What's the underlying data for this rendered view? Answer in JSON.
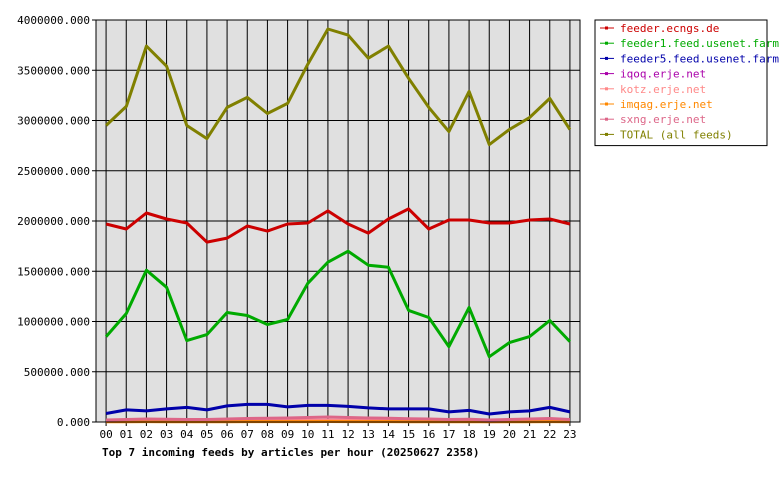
{
  "chart_data": {
    "type": "line",
    "title": "Top 7 incoming feeds by articles per hour (20250627 2358)",
    "categories": [
      "00",
      "01",
      "02",
      "03",
      "04",
      "05",
      "06",
      "07",
      "08",
      "09",
      "10",
      "11",
      "12",
      "13",
      "14",
      "15",
      "16",
      "17",
      "18",
      "19",
      "20",
      "21",
      "22",
      "23"
    ],
    "ylim": [
      0,
      4000000
    ],
    "yticks": [
      "0.000",
      "500000.000",
      "1000000.000",
      "1500000.000",
      "2000000.000",
      "2500000.000",
      "3000000.000",
      "3500000.000",
      "4000000.000"
    ],
    "grid": true,
    "legend_position": "right",
    "series": [
      {
        "name": "feeder.ecngs.de",
        "color": "#cc0000",
        "values": [
          1970000,
          1920000,
          2080000,
          2020000,
          1980000,
          1790000,
          1830000,
          1950000,
          1900000,
          1970000,
          1980000,
          2100000,
          1970000,
          1880000,
          2020000,
          2120000,
          1920000,
          2010000,
          2010000,
          1980000,
          1980000,
          2010000,
          2020000,
          1970000
        ]
      },
      {
        "name": "feeder1.feed.usenet.farm",
        "color": "#00aa00",
        "values": [
          850000,
          1080000,
          1510000,
          1340000,
          810000,
          870000,
          1090000,
          1060000,
          970000,
          1020000,
          1380000,
          1590000,
          1700000,
          1560000,
          1540000,
          1110000,
          1040000,
          750000,
          1140000,
          650000,
          790000,
          850000,
          1010000,
          800000
        ]
      },
      {
        "name": "feeder5.feed.usenet.farm",
        "color": "#0000aa",
        "values": [
          85000,
          120000,
          110000,
          130000,
          145000,
          120000,
          160000,
          175000,
          175000,
          150000,
          165000,
          165000,
          155000,
          140000,
          130000,
          130000,
          130000,
          100000,
          115000,
          80000,
          100000,
          110000,
          145000,
          100000
        ]
      },
      {
        "name": "iqoq.erje.net",
        "color": "#aa00aa",
        "values": [
          5000,
          6000,
          7000,
          6000,
          5000,
          5000,
          6000,
          7000,
          8000,
          7000,
          8000,
          9000,
          8000,
          7000,
          7000,
          6000,
          6000,
          5000,
          6000,
          4000,
          5000,
          6000,
          7000,
          5000
        ]
      },
      {
        "name": "kotz.erje.net",
        "color": "#ff8888",
        "values": [
          10000,
          12000,
          14000,
          13000,
          11000,
          10000,
          12000,
          14000,
          15000,
          14000,
          16000,
          18000,
          16000,
          14000,
          14000,
          12000,
          12000,
          10000,
          12000,
          8000,
          10000,
          12000,
          14000,
          10000
        ]
      },
      {
        "name": "imqag.erje.net",
        "color": "#ff8800",
        "values": [
          3000,
          3000,
          4000,
          3000,
          3000,
          3000,
          3000,
          4000,
          4000,
          4000,
          4000,
          5000,
          4000,
          4000,
          4000,
          3000,
          3000,
          3000,
          3000,
          2000,
          3000,
          3000,
          4000,
          3000
        ]
      },
      {
        "name": "sxng.erje.net",
        "color": "#dd6688",
        "values": [
          20000,
          25000,
          30000,
          28000,
          25000,
          25000,
          30000,
          35000,
          38000,
          40000,
          45000,
          50000,
          45000,
          40000,
          38000,
          32000,
          30000,
          25000,
          28000,
          20000,
          25000,
          30000,
          35000,
          25000
        ]
      },
      {
        "name": "TOTAL (all feeds)",
        "color": "#808000",
        "values": [
          2950000,
          3140000,
          3740000,
          3540000,
          2950000,
          2820000,
          3130000,
          3230000,
          3070000,
          3170000,
          3560000,
          3910000,
          3850000,
          3620000,
          3740000,
          3420000,
          3130000,
          2890000,
          3290000,
          2760000,
          2910000,
          3030000,
          3220000,
          2910000
        ]
      }
    ]
  }
}
